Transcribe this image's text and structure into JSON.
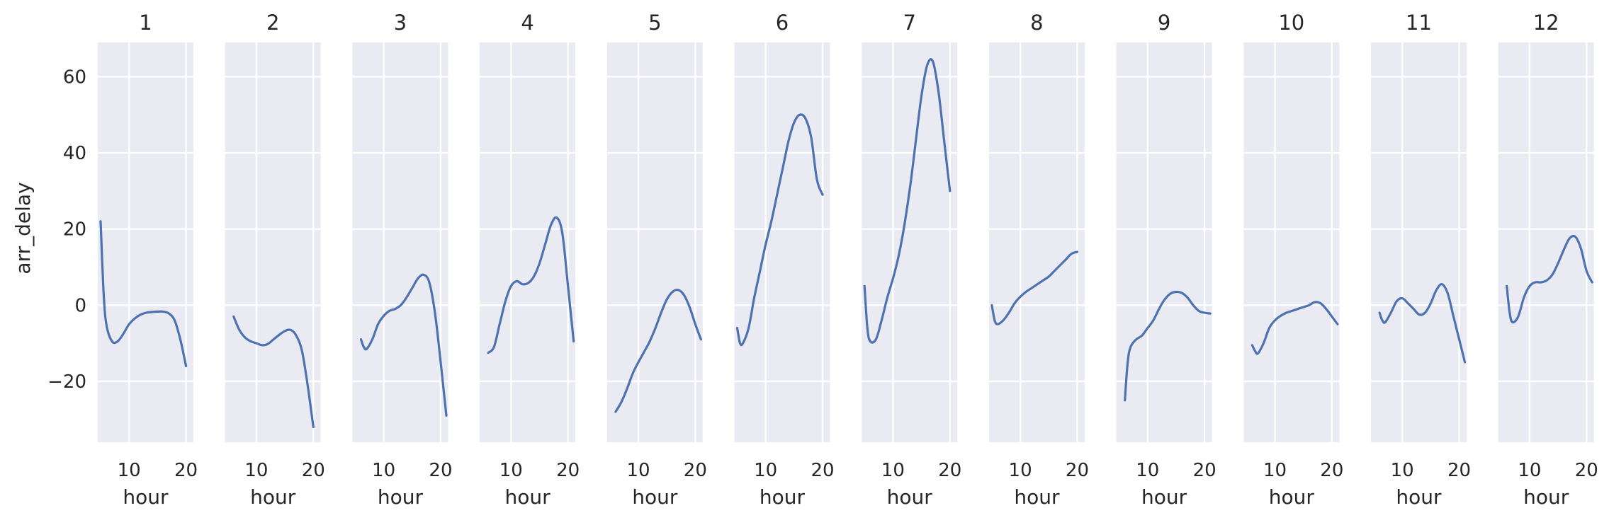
{
  "chart_data": {
    "type": "line",
    "layout": "faceted small multiples (1 row x 12 columns), shared y axis",
    "xlabel": "hour",
    "ylabel": "arr_delay",
    "xlim": [
      4.5,
      21.3
    ],
    "ylim": [
      -36,
      69
    ],
    "xticks": [
      10,
      20
    ],
    "xtick_labels": [
      "10",
      "20"
    ],
    "yticks": [
      -20,
      0,
      20,
      40,
      60
    ],
    "ytick_labels": [
      "−20",
      "0",
      "20",
      "40",
      "60"
    ],
    "grid": true,
    "legend": "none",
    "colors": {
      "line": "#4c72b0",
      "panel_bg": "#eaeaf2",
      "grid": "#ffffff",
      "text": "#262626"
    },
    "facets": [
      {
        "title": "1",
        "x": [
          5,
          5.5,
          6,
          7,
          8,
          9,
          10,
          11,
          12,
          13,
          14,
          15,
          16,
          17,
          18,
          19,
          20
        ],
        "y": [
          22,
          4,
          -5,
          -9.5,
          -9.5,
          -7.5,
          -5,
          -3.5,
          -2.5,
          -2,
          -1.8,
          -1.7,
          -1.7,
          -2.2,
          -4,
          -9,
          -16
        ]
      },
      {
        "title": "2",
        "x": [
          6,
          7,
          8,
          9,
          10,
          11,
          12,
          13,
          14,
          15,
          16,
          17,
          18,
          19,
          20
        ],
        "y": [
          -3,
          -6.5,
          -8.5,
          -9.5,
          -10,
          -10.5,
          -10.2,
          -9,
          -7.8,
          -6.8,
          -6.5,
          -8,
          -12,
          -21,
          -32
        ]
      },
      {
        "title": "3",
        "x": [
          6,
          6.5,
          7,
          8,
          9,
          10,
          11,
          12,
          13,
          14,
          15,
          16,
          17,
          18,
          19,
          20,
          21
        ],
        "y": [
          -9,
          -11,
          -11.5,
          -9,
          -5,
          -2.8,
          -1.5,
          -1,
          0,
          2,
          4.5,
          7,
          8,
          6,
          -2,
          -15,
          -29
        ]
      },
      {
        "title": "4",
        "x": [
          6,
          7,
          8,
          9,
          10,
          11,
          12,
          13,
          14,
          15,
          16,
          17,
          18,
          19,
          20,
          21
        ],
        "y": [
          -12.5,
          -11,
          -5,
          1,
          5,
          6.3,
          5.5,
          5.8,
          7.5,
          11,
          16,
          21,
          23,
          19,
          5,
          -9.5
        ]
      },
      {
        "title": "5",
        "x": [
          6,
          7,
          8,
          9,
          10,
          11,
          12,
          13,
          14,
          15,
          16,
          17,
          18,
          19,
          20,
          21
        ],
        "y": [
          -28,
          -25.5,
          -22,
          -18,
          -15,
          -12.3,
          -9.5,
          -6,
          -2,
          1.5,
          3.5,
          4,
          2.7,
          -0.5,
          -5,
          -9
        ]
      },
      {
        "title": "6",
        "x": [
          5,
          5.5,
          6,
          7,
          8,
          9,
          10,
          11,
          12,
          13,
          14,
          15,
          16,
          17,
          18,
          19,
          20
        ],
        "y": [
          -6,
          -10,
          -10,
          -6,
          2,
          9,
          16,
          22,
          29,
          36,
          43,
          48,
          50,
          49,
          44,
          33,
          29
        ]
      },
      {
        "title": "7",
        "x": [
          5,
          5.5,
          6,
          7,
          8,
          9,
          10,
          11,
          12,
          13,
          14,
          15,
          16,
          17,
          18,
          19,
          20
        ],
        "y": [
          5,
          -6,
          -9.5,
          -9,
          -4,
          2,
          7,
          13,
          21,
          31,
          43,
          55,
          63,
          64,
          56,
          43,
          30
        ]
      },
      {
        "title": "8",
        "x": [
          5,
          5.5,
          6,
          7,
          8,
          9,
          10,
          11,
          12,
          13,
          14,
          15,
          16,
          17,
          18,
          19,
          20
        ],
        "y": [
          0,
          -4,
          -5,
          -4,
          -2,
          0.5,
          2.2,
          3.5,
          4.5,
          5.5,
          6.5,
          7.5,
          9,
          10.5,
          12,
          13.5,
          14
        ]
      },
      {
        "title": "9",
        "x": [
          6,
          6.5,
          7,
          8,
          9,
          10,
          11,
          12,
          13,
          14,
          15,
          16,
          17,
          18,
          19,
          20,
          21
        ],
        "y": [
          -25,
          -15,
          -11,
          -9,
          -8,
          -6,
          -4,
          -1,
          1.5,
          3,
          3.5,
          3.2,
          2,
          0,
          -1.5,
          -2,
          -2.2
        ]
      },
      {
        "title": "10",
        "x": [
          6,
          6.5,
          7,
          8,
          9,
          10,
          11,
          12,
          13,
          14,
          15,
          16,
          17,
          18,
          19,
          20,
          21
        ],
        "y": [
          -10.5,
          -12,
          -12.7,
          -10,
          -6,
          -4,
          -2.8,
          -2,
          -1.5,
          -1,
          -0.5,
          0,
          0.8,
          0.5,
          -1,
          -3,
          -5
        ]
      },
      {
        "title": "11",
        "x": [
          6,
          6.5,
          7,
          8,
          9,
          10,
          11,
          12,
          13,
          14,
          15,
          16,
          17,
          18,
          19,
          20,
          21
        ],
        "y": [
          -2,
          -4,
          -4.5,
          -2,
          1,
          1.8,
          0.5,
          -1,
          -2.5,
          -2,
          0.5,
          4,
          5.5,
          3,
          -3,
          -9,
          -15
        ]
      },
      {
        "title": "12",
        "x": [
          6,
          6.5,
          7,
          8,
          9,
          10,
          11,
          12,
          13,
          14,
          15,
          16,
          17,
          18,
          19,
          20,
          21
        ],
        "y": [
          5,
          -2,
          -4.5,
          -3,
          2,
          5,
          6,
          6,
          6.5,
          8,
          11,
          14.5,
          17.5,
          18,
          15,
          9,
          6
        ]
      }
    ]
  }
}
